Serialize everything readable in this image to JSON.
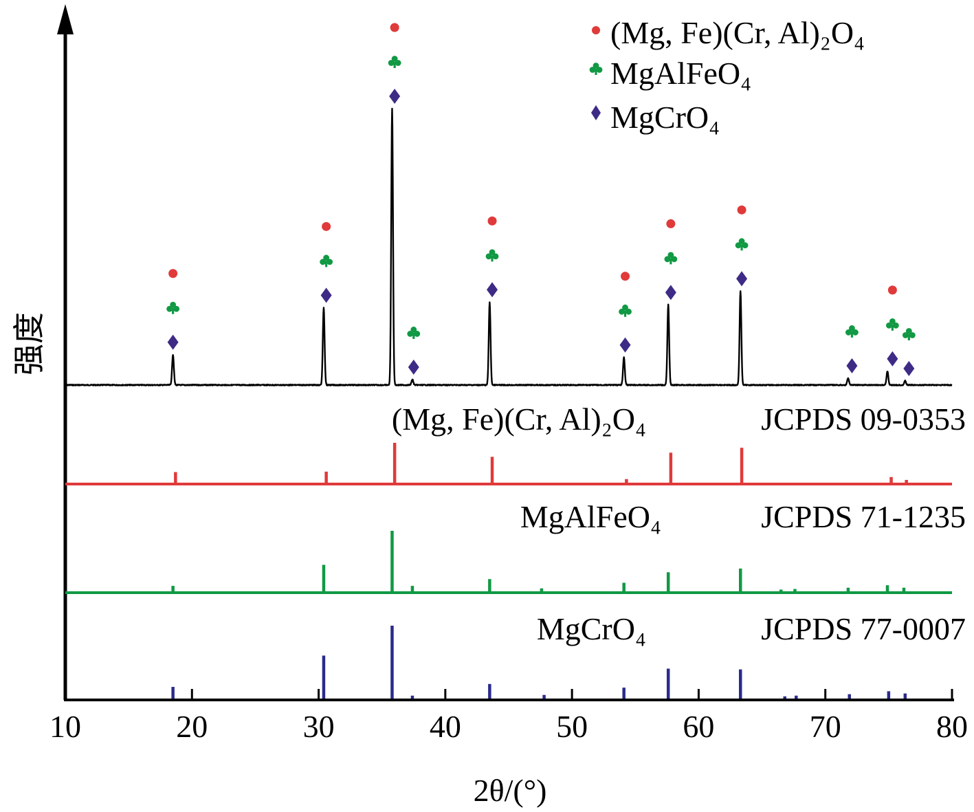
{
  "chart_data": {
    "type": "line",
    "xlabel": "2θ/(°)",
    "ylabel": "强度",
    "xlim": [
      10,
      80
    ],
    "x_ticks": [
      10,
      20,
      30,
      40,
      50,
      60,
      70,
      80
    ],
    "legend": {
      "placement": "top-right",
      "entries": [
        {
          "name": "(Mg, Fe)(Cr, Al)₂O₄",
          "marker": "circle",
          "color": "#e03a3a"
        },
        {
          "name": "MgAlFeO₄",
          "marker": "club",
          "color": "#119944"
        },
        {
          "name": "MgCrO₄",
          "marker": "diamond",
          "color": "#3e2b86"
        }
      ]
    },
    "colors": {
      "sample": "#000000",
      "ref1": "#e03a3a",
      "ref2": "#119944",
      "ref3": "#2b2b8c"
    },
    "sample_pattern": {
      "baseline": 0,
      "peaks": [
        {
          "x": 18.5,
          "y": 11
        },
        {
          "x": 30.4,
          "y": 28
        },
        {
          "x": 35.8,
          "y": 100
        },
        {
          "x": 37.4,
          "y": 2
        },
        {
          "x": 43.5,
          "y": 30
        },
        {
          "x": 54.1,
          "y": 10
        },
        {
          "x": 57.6,
          "y": 29
        },
        {
          "x": 63.3,
          "y": 34
        },
        {
          "x": 71.8,
          "y": 2.5
        },
        {
          "x": 74.9,
          "y": 5
        },
        {
          "x": 76.3,
          "y": 1.5
        }
      ]
    },
    "markers": [
      {
        "x": 18.5,
        "types": [
          "circle",
          "club",
          "diamond"
        ]
      },
      {
        "x": 30.6,
        "types": [
          "circle",
          "club",
          "diamond"
        ]
      },
      {
        "x": 36.0,
        "types": [
          "circle",
          "club",
          "diamond"
        ]
      },
      {
        "x": 37.5,
        "types": [
          "club",
          "diamond"
        ]
      },
      {
        "x": 43.7,
        "types": [
          "circle",
          "club",
          "diamond"
        ]
      },
      {
        "x": 54.2,
        "types": [
          "circle",
          "club",
          "diamond"
        ]
      },
      {
        "x": 57.8,
        "types": [
          "circle",
          "club",
          "diamond"
        ]
      },
      {
        "x": 63.4,
        "types": [
          "circle",
          "club",
          "diamond"
        ]
      },
      {
        "x": 72.1,
        "types": [
          "club",
          "diamond"
        ]
      },
      {
        "x": 75.3,
        "types": [
          "circle",
          "club",
          "diamond"
        ]
      },
      {
        "x": 76.6,
        "types": [
          "club",
          "diamond"
        ]
      }
    ],
    "references": [
      {
        "name": "(Mg, Fe)(Cr, Al)₂O₄",
        "card": "JCPDS 09-0353",
        "color": "#e03a3a",
        "lines": [
          {
            "x": 18.7,
            "y": 29
          },
          {
            "x": 30.6,
            "y": 30
          },
          {
            "x": 36.0,
            "y": 100
          },
          {
            "x": 43.7,
            "y": 66
          },
          {
            "x": 54.3,
            "y": 12
          },
          {
            "x": 57.8,
            "y": 76
          },
          {
            "x": 63.4,
            "y": 88
          },
          {
            "x": 75.2,
            "y": 17
          },
          {
            "x": 76.4,
            "y": 10
          }
        ]
      },
      {
        "name": "MgAlFeO₄",
        "card": "JCPDS 71-1235",
        "color": "#119944",
        "lines": [
          {
            "x": 18.5,
            "y": 11
          },
          {
            "x": 30.4,
            "y": 45
          },
          {
            "x": 35.8,
            "y": 100
          },
          {
            "x": 37.4,
            "y": 11
          },
          {
            "x": 43.5,
            "y": 22
          },
          {
            "x": 47.6,
            "y": 7
          },
          {
            "x": 54.1,
            "y": 16
          },
          {
            "x": 57.6,
            "y": 33
          },
          {
            "x": 63.3,
            "y": 39
          },
          {
            "x": 66.5,
            "y": 5
          },
          {
            "x": 67.6,
            "y": 6
          },
          {
            "x": 71.8,
            "y": 8
          },
          {
            "x": 74.9,
            "y": 12
          },
          {
            "x": 76.2,
            "y": 8
          }
        ]
      },
      {
        "name": "MgCrO₄",
        "card": "JCPDS 77-0007",
        "color": "#2b2b8c",
        "lines": [
          {
            "x": 18.5,
            "y": 16
          },
          {
            "x": 30.4,
            "y": 59
          },
          {
            "x": 35.8,
            "y": 100
          },
          {
            "x": 37.4,
            "y": 4
          },
          {
            "x": 43.5,
            "y": 20
          },
          {
            "x": 47.8,
            "y": 5
          },
          {
            "x": 54.1,
            "y": 15
          },
          {
            "x": 57.6,
            "y": 41
          },
          {
            "x": 63.3,
            "y": 40
          },
          {
            "x": 66.8,
            "y": 3
          },
          {
            "x": 67.7,
            "y": 4
          },
          {
            "x": 71.9,
            "y": 6
          },
          {
            "x": 75.0,
            "y": 10
          },
          {
            "x": 76.3,
            "y": 7
          }
        ]
      }
    ]
  }
}
